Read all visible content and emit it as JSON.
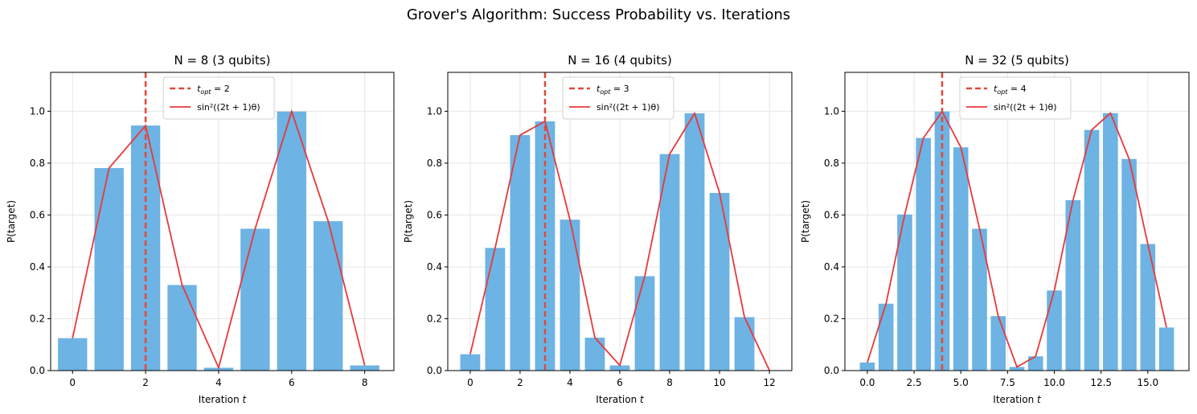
{
  "figure_title": "Grover's Algorithm: Success Probability vs. Iterations",
  "colors": {
    "bar": "#6db3e3",
    "theory": "#e8383b",
    "optimal": "#e04a3c",
    "grid": "#e6e6e6"
  },
  "chart_data": [
    {
      "type": "bar",
      "title": "N = 8 (3 qubits)",
      "xlabel_main": "Iteration ",
      "xlabel_var": "t",
      "ylabel": "P(target)",
      "x": [
        0,
        1,
        2,
        3,
        4,
        5,
        6,
        7,
        8
      ],
      "values": [
        0.125,
        0.781,
        0.945,
        0.33,
        0.011,
        0.547,
        0.999,
        0.576,
        0.02
      ],
      "theory": [
        0.125,
        0.781,
        0.945,
        0.33,
        0.011,
        0.547,
        0.999,
        0.576,
        0.02
      ],
      "t_opt": 2,
      "xlim": [
        -0.6,
        8.8
      ],
      "ylim": [
        0,
        1.15
      ],
      "xticks": [
        0,
        2,
        4,
        6,
        8
      ],
      "xtick_labels": [
        "0",
        "2",
        "4",
        "6",
        "8"
      ],
      "yticks": [
        0.0,
        0.2,
        0.4,
        0.6,
        0.8,
        1.0
      ],
      "ytick_labels": [
        "0.0",
        "0.2",
        "0.4",
        "0.6",
        "0.8",
        "1.0"
      ],
      "grid": true,
      "legend": {
        "position": "top-center",
        "opt_main": "t",
        "opt_sub": "opt",
        "opt_val": " = 2",
        "theory_label": "sin²((2t + 1)θ)"
      }
    },
    {
      "type": "bar",
      "title": "N = 16 (4 qubits)",
      "xlabel_main": "Iteration ",
      "xlabel_var": "t",
      "ylabel": "P(target)",
      "x": [
        0,
        1,
        2,
        3,
        4,
        5,
        6,
        7,
        8,
        9,
        10,
        11,
        12
      ],
      "values": [
        0.063,
        0.473,
        0.908,
        0.961,
        0.582,
        0.127,
        0.02,
        0.364,
        0.835,
        0.992,
        0.685,
        0.206,
        0.001
      ],
      "theory": [
        0.063,
        0.473,
        0.908,
        0.961,
        0.582,
        0.127,
        0.02,
        0.364,
        0.835,
        0.992,
        0.685,
        0.206,
        0.001
      ],
      "t_opt": 3,
      "xlim": [
        -0.9,
        12.9
      ],
      "ylim": [
        0,
        1.15
      ],
      "xticks": [
        0,
        2,
        4,
        6,
        8,
        10,
        12
      ],
      "xtick_labels": [
        "0",
        "2",
        "4",
        "6",
        "8",
        "10",
        "12"
      ],
      "yticks": [
        0.0,
        0.2,
        0.4,
        0.6,
        0.8,
        1.0
      ],
      "ytick_labels": [
        "0.0",
        "0.2",
        "0.4",
        "0.6",
        "0.8",
        "1.0"
      ],
      "grid": true,
      "legend": {
        "position": "top-center",
        "opt_main": "t",
        "opt_sub": "opt",
        "opt_val": " = 3",
        "theory_label": "sin²((2t + 1)θ)"
      }
    },
    {
      "type": "bar",
      "title": "N = 32 (5 qubits)",
      "xlabel_main": "Iteration ",
      "xlabel_var": "t",
      "ylabel": "P(target)",
      "x": [
        0,
        1,
        2,
        3,
        4,
        5,
        6,
        7,
        8,
        9,
        10,
        11,
        12,
        13,
        14,
        15,
        16
      ],
      "values": [
        0.031,
        0.258,
        0.602,
        0.897,
        0.999,
        0.861,
        0.547,
        0.21,
        0.014,
        0.055,
        0.309,
        0.657,
        0.928,
        0.993,
        0.816,
        0.488,
        0.166
      ],
      "theory": [
        0.031,
        0.258,
        0.602,
        0.897,
        0.999,
        0.861,
        0.547,
        0.21,
        0.014,
        0.055,
        0.309,
        0.657,
        0.928,
        0.993,
        0.816,
        0.488,
        0.166
      ],
      "t_opt": 4,
      "xlim": [
        -1.2,
        17.2
      ],
      "ylim": [
        0,
        1.15
      ],
      "xticks": [
        0,
        2.5,
        5,
        7.5,
        10,
        12.5,
        15
      ],
      "xtick_labels": [
        "0.0",
        "2.5",
        "5.0",
        "7.5",
        "10.0",
        "12.5",
        "15.0"
      ],
      "yticks": [
        0.0,
        0.2,
        0.4,
        0.6,
        0.8,
        1.0
      ],
      "ytick_labels": [
        "0.0",
        "0.2",
        "0.4",
        "0.6",
        "0.8",
        "1.0"
      ],
      "grid": true,
      "legend": {
        "position": "top-center",
        "opt_main": "t",
        "opt_sub": "opt",
        "opt_val": " = 4",
        "theory_label": "sin²((2t + 1)θ)"
      }
    }
  ]
}
